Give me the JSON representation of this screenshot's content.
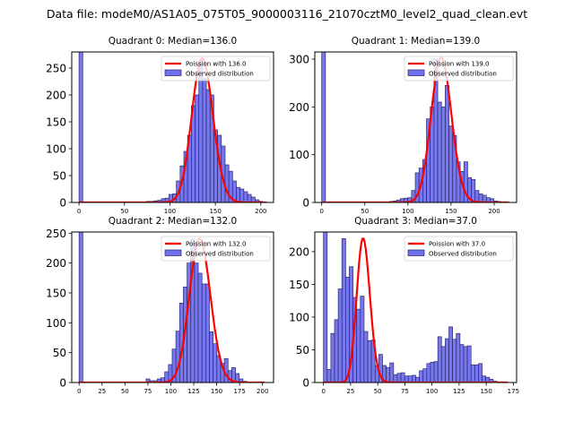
{
  "figure": {
    "suptitle": "Data file: modeM0/AS1A05_075T05_9000003116_21070cztM0_level2_quad_clean.evt"
  },
  "colors": {
    "bar_fill": "#7070ee",
    "bar_edge": "#2a2a6a",
    "poisson_line": "#ff0000"
  },
  "chart_data": [
    {
      "type": "bar",
      "title": "Quadrant 0: Median=136.0",
      "xlim": [
        -8,
        214
      ],
      "ylim": [
        0,
        280
      ],
      "xticks": [
        0,
        50,
        100,
        150,
        200
      ],
      "yticks": [
        0,
        50,
        100,
        150,
        200,
        250
      ],
      "bin_start": 0,
      "bin_width": 4.12,
      "counts": [
        280,
        0,
        0,
        0,
        0,
        0,
        0,
        0,
        0,
        0,
        0,
        0,
        0,
        0,
        0,
        0,
        0,
        1,
        2,
        2,
        3,
        4,
        7,
        8,
        15,
        16,
        40,
        68,
        95,
        125,
        180,
        200,
        260,
        230,
        210,
        200,
        135,
        125,
        105,
        70,
        58,
        40,
        28,
        25,
        20,
        15,
        10,
        5,
        2,
        1
      ],
      "poisson_mean": 136.0,
      "poisson_peak": 268,
      "legend": [
        "Poission with 136.0",
        "Observed distribution"
      ],
      "legend_position": "top-right"
    },
    {
      "type": "bar",
      "title": "Quadrant 1: Median=139.0",
      "xlim": [
        -8,
        226
      ],
      "ylim": [
        0,
        315
      ],
      "xticks": [
        0,
        50,
        100,
        150,
        200
      ],
      "yticks": [
        0,
        100,
        200,
        300
      ],
      "bin_start": 0,
      "bin_width": 4.34,
      "counts": [
        315,
        0,
        0,
        0,
        0,
        0,
        0,
        0,
        0,
        0,
        0,
        0,
        0,
        0,
        0,
        0,
        0,
        1,
        2,
        3,
        5,
        8,
        9,
        10,
        25,
        62,
        72,
        90,
        175,
        200,
        300,
        210,
        200,
        245,
        160,
        140,
        85,
        65,
        85,
        52,
        48,
        25,
        18,
        15,
        10,
        8,
        3,
        2,
        1,
        1
      ],
      "poisson_mean": 139.0,
      "poisson_peak": 303,
      "legend": [
        "Poission with 139.0",
        "Observed distribution"
      ],
      "legend_position": "top-right"
    },
    {
      "type": "bar",
      "title": "Quadrant 2: Median=132.0",
      "xlim": [
        -8,
        212
      ],
      "ylim": [
        0,
        252
      ],
      "xticks": [
        0,
        25,
        50,
        75,
        100,
        125,
        150,
        175,
        200
      ],
      "yticks": [
        0,
        50,
        100,
        150,
        200,
        250
      ],
      "bin_start": 0,
      "bin_width": 4.06,
      "counts": [
        252,
        0,
        0,
        0,
        0,
        0,
        0,
        0,
        0,
        0,
        0,
        0,
        0,
        0,
        0,
        0,
        0,
        0,
        6,
        3,
        3,
        6,
        8,
        18,
        30,
        56,
        86,
        133,
        160,
        200,
        240,
        200,
        183,
        165,
        165,
        85,
        65,
        45,
        32,
        40,
        20,
        25,
        15,
        6,
        2,
        1,
        0,
        0,
        0,
        0
      ],
      "poisson_mean": 132.0,
      "poisson_peak": 241,
      "legend": [
        "Poission with 132.0",
        "Observed distribution"
      ],
      "legend_position": "top-right"
    },
    {
      "type": "bar",
      "title": "Quadrant 3: Median=37.0",
      "xlim": [
        -8,
        178
      ],
      "ylim": [
        0,
        230
      ],
      "xticks": [
        0,
        25,
        50,
        75,
        100,
        125,
        150,
        175
      ],
      "yticks": [
        0,
        50,
        100,
        150,
        200
      ],
      "bin_start": 0,
      "bin_width": 3.4,
      "counts": [
        230,
        20,
        75,
        96,
        143,
        220,
        161,
        177,
        130,
        112,
        132,
        78,
        64,
        65,
        26,
        43,
        26,
        23,
        30,
        12,
        14,
        15,
        10,
        10,
        11,
        8,
        18,
        21,
        29,
        31,
        32,
        70,
        55,
        67,
        85,
        66,
        75,
        58,
        55,
        56,
        27,
        27,
        29,
        10,
        8,
        5,
        2,
        1,
        1,
        0
      ],
      "poisson_mean": 37.0,
      "poisson_peak": 220,
      "legend": [
        "Poission with 37.0",
        "Observed distribution"
      ],
      "legend_position": "top-right"
    }
  ]
}
